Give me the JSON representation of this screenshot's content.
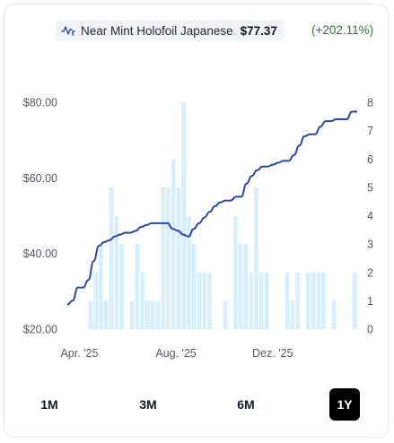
{
  "header": {
    "title": "Near Mint Holofoil Japanese",
    "price": "$77.37",
    "change": "(+202.11%)",
    "icon": "line-chart-icon"
  },
  "colors": {
    "line": "#2747b0",
    "bar": "#d6efff",
    "positive": "#2e7d32",
    "active_tab_bg": "#000000"
  },
  "tabs": [
    {
      "label": "1M",
      "active": false
    },
    {
      "label": "3M",
      "active": false
    },
    {
      "label": "6M",
      "active": false
    },
    {
      "label": "1Y",
      "active": true
    }
  ],
  "chart_data": {
    "type": "line",
    "title": "",
    "x_tick_labels": [
      "Apr. '25",
      "Aug. '25",
      "Dez. '25"
    ],
    "y_left": {
      "ticks": [
        "$80.00",
        "$60.00",
        "$40.00",
        "$20.00"
      ],
      "range": [
        20,
        80
      ]
    },
    "y_right": {
      "ticks": [
        "8",
        "7",
        "6",
        "5",
        "4",
        "3",
        "2",
        "1",
        "0"
      ],
      "range": [
        0,
        8
      ]
    },
    "grid": false,
    "series": [
      {
        "type": "line",
        "values": [
          26.5,
          27.5,
          31,
          31,
          33,
          38,
          42,
          43,
          43.5,
          44.5,
          45,
          45.5,
          45.5,
          46,
          47,
          47.5,
          48,
          48,
          48,
          48,
          46.5,
          46,
          45,
          44.5,
          46.5,
          48,
          49.5,
          51,
          52.5,
          53.5,
          54,
          54,
          55,
          55,
          58.5,
          60.5,
          62,
          63,
          63,
          63.5,
          64,
          64.5,
          64.5,
          66,
          68.5,
          71,
          71.5,
          71.5,
          73.5,
          75,
          75,
          75.5,
          75.5,
          75.5,
          77.5,
          77.5
        ]
      },
      {
        "type": "bar",
        "axis": "right",
        "values": [
          0,
          0,
          0,
          0,
          1,
          2,
          3,
          1,
          5,
          4,
          3,
          0,
          1,
          3,
          2,
          1,
          1,
          1,
          5,
          5,
          6,
          5,
          8,
          4,
          3,
          2,
          2,
          2,
          0,
          0,
          1,
          0,
          4,
          3,
          3,
          2,
          5,
          2,
          2,
          0,
          0,
          0,
          2,
          1,
          2,
          0,
          2,
          2,
          2,
          2,
          0,
          1,
          0,
          0,
          0,
          2
        ]
      }
    ]
  }
}
